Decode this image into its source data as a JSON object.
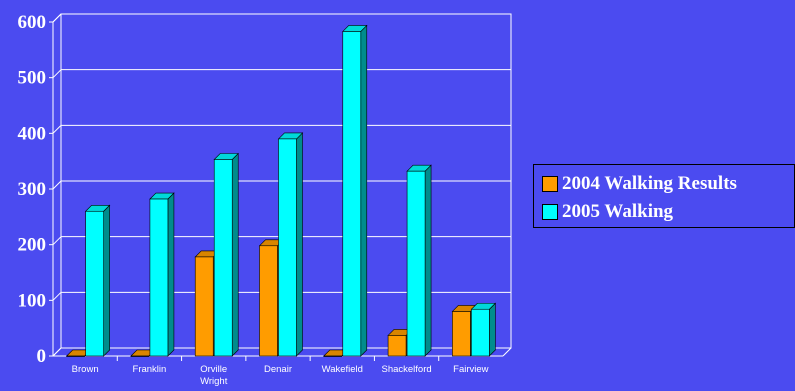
{
  "chart_data": {
    "type": "bar",
    "categories": [
      "Brown",
      "Franklin",
      "Orville Wright",
      "Denair",
      "Wakefield",
      "Shackelford",
      "Fairview"
    ],
    "category_lines": [
      [
        "Brown"
      ],
      [
        "Franklin"
      ],
      [
        "Orville",
        "Wright"
      ],
      [
        "Denair"
      ],
      [
        "Wakefield"
      ],
      [
        "Shackelford"
      ],
      [
        "Fairview"
      ]
    ],
    "series": [
      {
        "name": "2004 Walking Results",
        "color": "#ff9c00",
        "values": [
          0,
          0,
          178,
          198,
          0,
          37,
          80
        ]
      },
      {
        "name": "2005 Walking",
        "color": "#00ffff",
        "values": [
          260,
          282,
          353,
          390,
          583,
          332,
          84
        ]
      }
    ],
    "ylim": [
      0,
      600
    ],
    "yticks": [
      0,
      100,
      200,
      300,
      400,
      500,
      600
    ],
    "grid": true,
    "legend_position": "right"
  }
}
